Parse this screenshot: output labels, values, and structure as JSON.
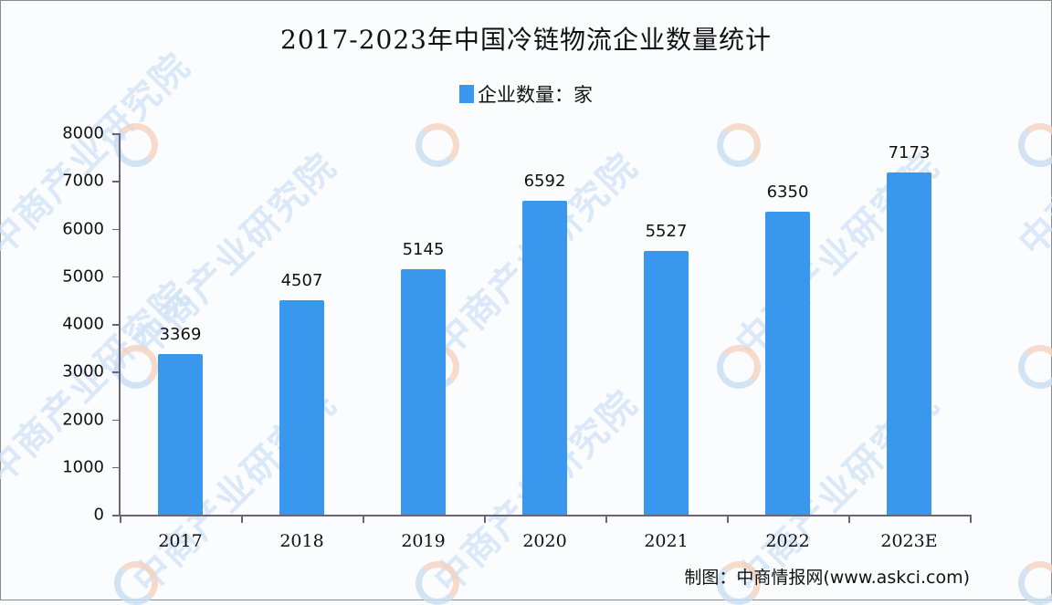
{
  "chart_data": {
    "type": "bar",
    "title": "2017-2023年中国冷链物流企业数量统计",
    "categories": [
      "2017",
      "2018",
      "2019",
      "2020",
      "2021",
      "2022",
      "2023E"
    ],
    "series": [
      {
        "name": "企业数量：家",
        "values": [
          3369,
          4507,
          5145,
          6592,
          5527,
          6350,
          7173
        ],
        "color": "#3a97ee"
      }
    ],
    "xlabel": "",
    "ylabel": "",
    "ylim": [
      0,
      8000
    ],
    "yticks": [
      0,
      1000,
      2000,
      3000,
      4000,
      5000,
      6000,
      7000,
      8000
    ],
    "grid": false,
    "legend_position": "top",
    "data_labels": true
  },
  "title": "2017-2023年中国冷链物流企业数量统计",
  "legend": {
    "label": "企业数量：家",
    "color": "#3a97ee"
  },
  "source": "制图：中商情报网(www.askci.com)",
  "watermark": "中商产业研究院"
}
